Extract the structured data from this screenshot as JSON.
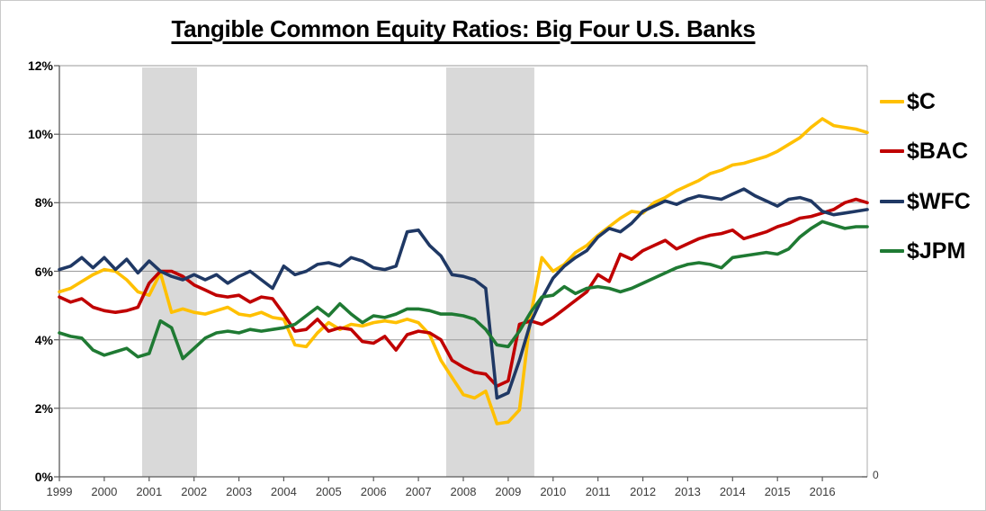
{
  "title": "Tangible Common Equity Ratios: Big Four U.S. Banks",
  "legend": {
    "items": [
      {
        "label": "$C"
      },
      {
        "label": "$BAC"
      },
      {
        "label": "$WFC"
      },
      {
        "label": "$JPM"
      }
    ]
  },
  "right_axis_zero_label": "0",
  "chart_data": {
    "type": "line",
    "title": "Tangible Common Equity Ratios: Big Four U.S. Banks",
    "xlabel": "",
    "ylabel": "",
    "ylim": [
      0,
      12
    ],
    "grid": "horizontal",
    "legend_position": "right",
    "y_tick_labels": [
      "0%",
      "2%",
      "4%",
      "6%",
      "8%",
      "10%",
      "12%"
    ],
    "x_tick_labels": [
      "1999",
      "2000",
      "2001",
      "2002",
      "2003",
      "2004",
      "2005",
      "2006",
      "2007",
      "2008",
      "2009",
      "2010",
      "2011",
      "2012",
      "2013",
      "2014",
      "2015",
      "2016"
    ],
    "band_color": "#D9D9D9",
    "recession_bands": [
      {
        "start_q": 7.38,
        "end_q": 12.27
      },
      {
        "start_q": 34.48,
        "end_q": 42.33
      }
    ],
    "categories": [
      "1999 Q1",
      "1999 Q2",
      "1999 Q3",
      "1999 Q4",
      "2000 Q1",
      "2000 Q2",
      "2000 Q3",
      "2000 Q4",
      "2001 Q1",
      "2001 Q2",
      "2001 Q3",
      "2001 Q4",
      "2002 Q1",
      "2002 Q2",
      "2002 Q3",
      "2002 Q4",
      "2003 Q1",
      "2003 Q2",
      "2003 Q3",
      "2003 Q4",
      "2004 Q1",
      "2004 Q2",
      "2004 Q3",
      "2004 Q4",
      "2005 Q1",
      "2005 Q2",
      "2005 Q3",
      "2005 Q4",
      "2006 Q1",
      "2006 Q2",
      "2006 Q3",
      "2006 Q4",
      "2007 Q1",
      "2007 Q2",
      "2007 Q3",
      "2007 Q4",
      "2008 Q1",
      "2008 Q2",
      "2008 Q3",
      "2008 Q4",
      "2009 Q1",
      "2009 Q2",
      "2009 Q3",
      "2009 Q4",
      "2010 Q1",
      "2010 Q2",
      "2010 Q3",
      "2010 Q4",
      "2011 Q1",
      "2011 Q2",
      "2011 Q3",
      "2011 Q4",
      "2012 Q1",
      "2012 Q2",
      "2012 Q3",
      "2012 Q4",
      "2013 Q1",
      "2013 Q2",
      "2013 Q3",
      "2013 Q4",
      "2014 Q1",
      "2014 Q2",
      "2014 Q3",
      "2014 Q4",
      "2015 Q1",
      "2015 Q2",
      "2015 Q3",
      "2015 Q4",
      "2016 Q1",
      "2016 Q2",
      "2016 Q3",
      "2016 Q4",
      "2017 Q1"
    ],
    "series": [
      {
        "name": "$C",
        "color": "#FFC000",
        "values": [
          5.4,
          5.5,
          5.7,
          5.9,
          6.05,
          6.0,
          5.75,
          5.4,
          5.3,
          5.95,
          4.8,
          4.9,
          4.8,
          4.75,
          4.85,
          4.95,
          4.75,
          4.7,
          4.8,
          4.65,
          4.6,
          3.85,
          3.8,
          4.2,
          4.5,
          4.3,
          4.45,
          4.4,
          4.5,
          4.55,
          4.5,
          4.6,
          4.5,
          4.15,
          3.4,
          2.9,
          2.4,
          2.3,
          2.5,
          1.55,
          1.6,
          1.95,
          4.7,
          6.4,
          6.0,
          6.2,
          6.55,
          6.75,
          7.05,
          7.3,
          7.55,
          7.75,
          7.7,
          8.0,
          8.15,
          8.35,
          8.5,
          8.65,
          8.85,
          8.95,
          9.1,
          9.15,
          9.25,
          9.35,
          9.5,
          9.7,
          9.9,
          10.2,
          10.45,
          10.25,
          10.2,
          10.15,
          10.05
        ]
      },
      {
        "name": "$BAC",
        "color": "#C00000",
        "values": [
          5.25,
          5.1,
          5.2,
          4.95,
          4.85,
          4.8,
          4.85,
          4.95,
          5.65,
          6.0,
          6.0,
          5.85,
          5.6,
          5.45,
          5.3,
          5.25,
          5.3,
          5.1,
          5.25,
          5.2,
          4.75,
          4.25,
          4.3,
          4.6,
          4.25,
          4.35,
          4.3,
          3.95,
          3.9,
          4.1,
          3.7,
          4.15,
          4.25,
          4.2,
          4.0,
          3.4,
          3.2,
          3.05,
          3.0,
          2.65,
          2.8,
          4.45,
          4.55,
          4.45,
          4.65,
          4.9,
          5.15,
          5.4,
          5.9,
          5.7,
          6.5,
          6.35,
          6.6,
          6.75,
          6.9,
          6.65,
          6.8,
          6.95,
          7.05,
          7.1,
          7.2,
          6.95,
          7.05,
          7.15,
          7.3,
          7.4,
          7.55,
          7.6,
          7.7,
          7.8,
          8.0,
          8.1,
          8.0
        ]
      },
      {
        "name": "$WFC",
        "color": "#1F3864",
        "values": [
          6.05,
          6.15,
          6.4,
          6.1,
          6.4,
          6.05,
          6.35,
          5.95,
          6.3,
          6.0,
          5.85,
          5.75,
          5.9,
          5.75,
          5.9,
          5.65,
          5.85,
          6.0,
          5.75,
          5.5,
          6.15,
          5.9,
          6.0,
          6.2,
          6.25,
          6.15,
          6.4,
          6.3,
          6.1,
          6.05,
          6.15,
          7.15,
          7.2,
          6.75,
          6.45,
          5.9,
          5.85,
          5.75,
          5.5,
          2.3,
          2.45,
          3.4,
          4.5,
          5.2,
          5.8,
          6.15,
          6.4,
          6.6,
          7.0,
          7.25,
          7.15,
          7.4,
          7.75,
          7.9,
          8.05,
          7.95,
          8.1,
          8.2,
          8.15,
          8.1,
          8.25,
          8.4,
          8.2,
          8.05,
          7.9,
          8.1,
          8.15,
          8.05,
          7.75,
          7.65,
          7.7,
          7.75,
          7.8
        ]
      },
      {
        "name": "$JPM",
        "color": "#1F7A33",
        "values": [
          4.2,
          4.1,
          4.05,
          3.7,
          3.55,
          3.65,
          3.75,
          3.5,
          3.6,
          4.55,
          4.35,
          3.45,
          3.75,
          4.05,
          4.2,
          4.25,
          4.2,
          4.3,
          4.25,
          4.3,
          4.35,
          4.45,
          4.7,
          4.95,
          4.7,
          5.05,
          4.75,
          4.5,
          4.7,
          4.65,
          4.75,
          4.9,
          4.9,
          4.85,
          4.75,
          4.75,
          4.7,
          4.6,
          4.3,
          3.85,
          3.8,
          4.25,
          4.8,
          5.25,
          5.3,
          5.55,
          5.35,
          5.5,
          5.55,
          5.5,
          5.4,
          5.5,
          5.65,
          5.8,
          5.95,
          6.1,
          6.2,
          6.25,
          6.2,
          6.1,
          6.4,
          6.45,
          6.5,
          6.55,
          6.5,
          6.65,
          7.0,
          7.25,
          7.45,
          7.35,
          7.25,
          7.3,
          7.3
        ]
      }
    ]
  }
}
